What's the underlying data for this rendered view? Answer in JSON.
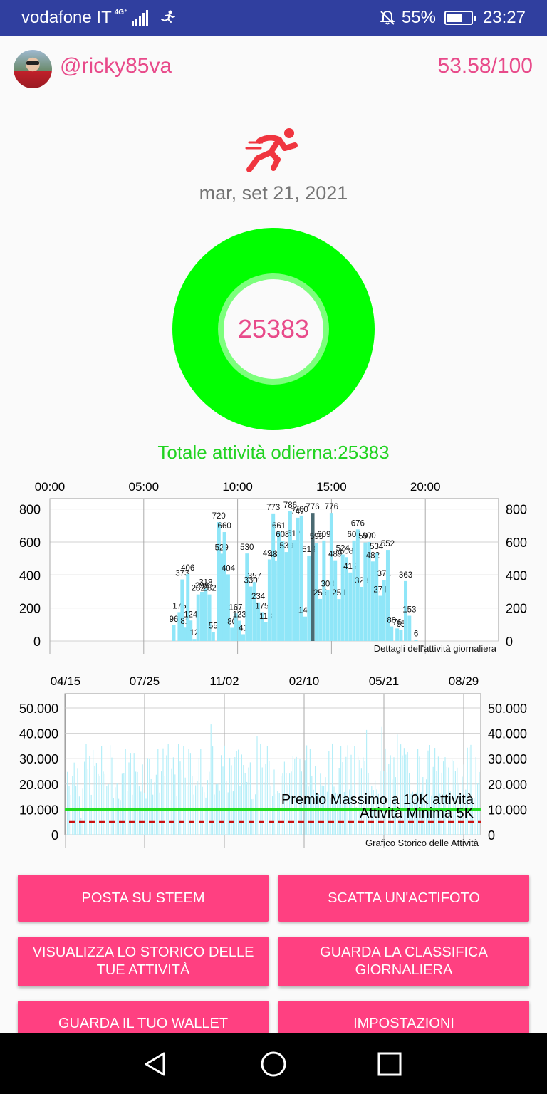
{
  "statusbar": {
    "carrier": "vodafone IT",
    "network": "4G⁺",
    "battery": "55%",
    "time": "23:27"
  },
  "header": {
    "username": "@ricky85va",
    "score": "53.58/100"
  },
  "date": "mar, set 21, 2021",
  "ring": {
    "value": "25383"
  },
  "total": "Totale attività odierna:25383",
  "colors": {
    "accent": "#ff4081",
    "pink_text": "#e84a8a",
    "ring": "#00ff00",
    "bar": "#8fe6f8",
    "highlight_bar": "#4a6a72"
  },
  "daily_chart": {
    "top_ticks": [
      "00:00",
      "05:00",
      "10:00",
      "15:00",
      "20:00"
    ],
    "y_ticks": [
      "800",
      "600",
      "400",
      "200",
      "0"
    ],
    "caption": "Dettagli dell'attività giornaliera"
  },
  "history_chart": {
    "top_ticks": [
      "04/15",
      "07/25",
      "11/02",
      "02/10",
      "05/21",
      "08/29"
    ],
    "y_ticks": [
      "50.000",
      "40.000",
      "30.000",
      "20.000",
      "10.000",
      "0"
    ],
    "max_label": "Premio Massimo a 10K attività",
    "min_label": "Attività Minima 5K",
    "caption": "Grafico Storico delle Attività"
  },
  "chart_data": [
    {
      "type": "bar",
      "x_unit": "time of day",
      "ylim": [
        0,
        850
      ],
      "bars": [
        {
          "t": 6.6,
          "v": 96
        },
        {
          "t": 6.9,
          "v": 175
        },
        {
          "t": 7.05,
          "v": 373
        },
        {
          "t": 7.2,
          "v": 81
        },
        {
          "t": 7.35,
          "v": 406
        },
        {
          "t": 7.5,
          "v": 124
        },
        {
          "t": 7.7,
          "v": 12
        },
        {
          "t": 7.9,
          "v": 282
        },
        {
          "t": 8.1,
          "v": 298
        },
        {
          "t": 8.3,
          "v": 318
        },
        {
          "t": 8.5,
          "v": 282
        },
        {
          "t": 8.7,
          "v": 55
        },
        {
          "t": 9.0,
          "v": 720
        },
        {
          "t": 9.15,
          "v": 529
        },
        {
          "t": 9.3,
          "v": 660
        },
        {
          "t": 9.5,
          "v": 404
        },
        {
          "t": 9.7,
          "v": 80
        },
        {
          "t": 9.9,
          "v": 167
        },
        {
          "t": 10.1,
          "v": 123
        },
        {
          "t": 10.3,
          "v": 41
        },
        {
          "t": 10.5,
          "v": 530
        },
        {
          "t": 10.7,
          "v": 330
        },
        {
          "t": 10.9,
          "v": 357
        },
        {
          "t": 11.1,
          "v": 234
        },
        {
          "t": 11.3,
          "v": 175
        },
        {
          "t": 11.5,
          "v": 113
        },
        {
          "t": 11.7,
          "v": 494
        },
        {
          "t": 11.9,
          "v": 773
        },
        {
          "t": 12.0,
          "v": 488
        },
        {
          "t": 12.2,
          "v": 661
        },
        {
          "t": 12.4,
          "v": 608
        },
        {
          "t": 12.6,
          "v": 539
        },
        {
          "t": 12.8,
          "v": 786
        },
        {
          "t": 13.0,
          "v": 612
        },
        {
          "t": 13.2,
          "v": 747
        },
        {
          "t": 13.4,
          "v": 760
        },
        {
          "t": 13.6,
          "v": 148
        },
        {
          "t": 13.8,
          "v": 518
        },
        {
          "t": 14.0,
          "v": 776
        },
        {
          "t": 14.2,
          "v": 595
        },
        {
          "t": 14.4,
          "v": 255
        },
        {
          "t": 14.6,
          "v": 609
        },
        {
          "t": 14.8,
          "v": 308
        },
        {
          "t": 15.0,
          "v": 776
        },
        {
          "t": 15.2,
          "v": 489
        },
        {
          "t": 15.4,
          "v": 254
        },
        {
          "t": 15.6,
          "v": 524
        },
        {
          "t": 15.8,
          "v": 508
        },
        {
          "t": 16.0,
          "v": 415
        },
        {
          "t": 16.2,
          "v": 609
        },
        {
          "t": 16.4,
          "v": 676
        },
        {
          "t": 16.6,
          "v": 328
        },
        {
          "t": 16.8,
          "v": 597
        },
        {
          "t": 17.0,
          "v": 600
        },
        {
          "t": 17.2,
          "v": 482
        },
        {
          "t": 17.4,
          "v": 534
        },
        {
          "t": 17.6,
          "v": 274
        },
        {
          "t": 17.8,
          "v": 371
        },
        {
          "t": 18.0,
          "v": 552
        },
        {
          "t": 18.2,
          "v": 88
        },
        {
          "t": 18.5,
          "v": 76
        },
        {
          "t": 18.7,
          "v": 65
        },
        {
          "t": 18.95,
          "v": 363
        },
        {
          "t": 19.15,
          "v": 153
        },
        {
          "t": 19.5,
          "v": 6
        }
      ],
      "highlight_t": 14.0
    },
    {
      "type": "bar",
      "x_unit": "date",
      "ylim": [
        0,
        50000
      ],
      "reference_lines": [
        {
          "name": "Premio Massimo a 10K attività",
          "value": 10000,
          "style": "solid",
          "color": "#22dd22"
        },
        {
          "name": "Attività Minima 5K",
          "value": 5000,
          "style": "dashed",
          "color": "#cc1111"
        }
      ]
    }
  ],
  "buttons": [
    {
      "label": "POSTA SU STEEM"
    },
    {
      "label": "SCATTA UN'ACTIFOTO"
    },
    {
      "label": "VISUALIZZA LO STORICO DELLE TUE ATTIVITÀ"
    },
    {
      "label": "GUARDA LA CLASSIFICA GIORNALIERA"
    },
    {
      "label": "GUARDA IL TUO WALLET"
    },
    {
      "label": "IMPOSTAZIONI"
    }
  ]
}
